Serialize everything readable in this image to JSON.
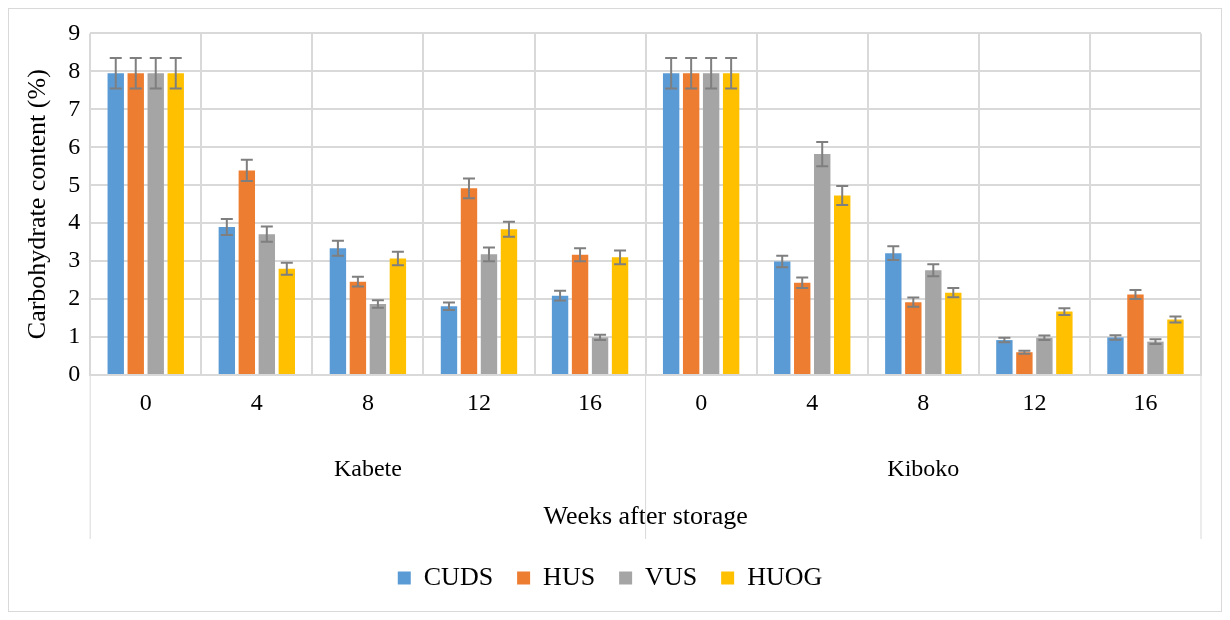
{
  "chart_data": {
    "type": "bar",
    "xlabel": "Weeks after storage",
    "ylabel": "Carbohydrate content (%)",
    "categories": [
      "0",
      "4",
      "8",
      "12",
      "16",
      "0",
      "4",
      "8",
      "12",
      "16"
    ],
    "annotations": [
      "Kabete",
      "Kiboko"
    ],
    "ylim": [
      0,
      9
    ],
    "yticks": [
      0,
      1,
      2,
      3,
      4,
      5,
      6,
      7,
      8,
      9
    ],
    "grid": true,
    "legend": "bottom",
    "series": [
      {
        "name": "CUDS",
        "color": "#5b9bd5",
        "values": [
          7.95,
          3.9,
          3.34,
          1.81,
          2.09,
          7.95,
          2.99,
          3.21,
          0.92,
          0.99
        ],
        "errors": [
          0.4,
          0.21,
          0.2,
          0.1,
          0.13,
          0.4,
          0.15,
          0.18,
          0.06,
          0.06
        ]
      },
      {
        "name": "HUS",
        "color": "#ed7d31",
        "values": [
          7.95,
          5.39,
          2.46,
          4.92,
          3.17,
          7.95,
          2.43,
          1.92,
          0.6,
          2.12
        ],
        "errors": [
          0.4,
          0.28,
          0.13,
          0.26,
          0.17,
          0.4,
          0.14,
          0.12,
          0.04,
          0.12
        ]
      },
      {
        "name": "VUS",
        "color": "#a5a5a5",
        "values": [
          7.95,
          3.71,
          1.87,
          3.18,
          0.99,
          7.95,
          5.82,
          2.76,
          0.98,
          0.88
        ],
        "errors": [
          0.4,
          0.2,
          0.1,
          0.18,
          0.07,
          0.4,
          0.32,
          0.16,
          0.06,
          0.06
        ]
      },
      {
        "name": "HUOG",
        "color": "#ffc000",
        "values": [
          7.95,
          2.8,
          3.07,
          3.84,
          3.1,
          7.95,
          4.73,
          2.17,
          1.67,
          1.46
        ],
        "errors": [
          0.4,
          0.16,
          0.18,
          0.2,
          0.18,
          0.4,
          0.25,
          0.12,
          0.09,
          0.08
        ]
      }
    ]
  }
}
